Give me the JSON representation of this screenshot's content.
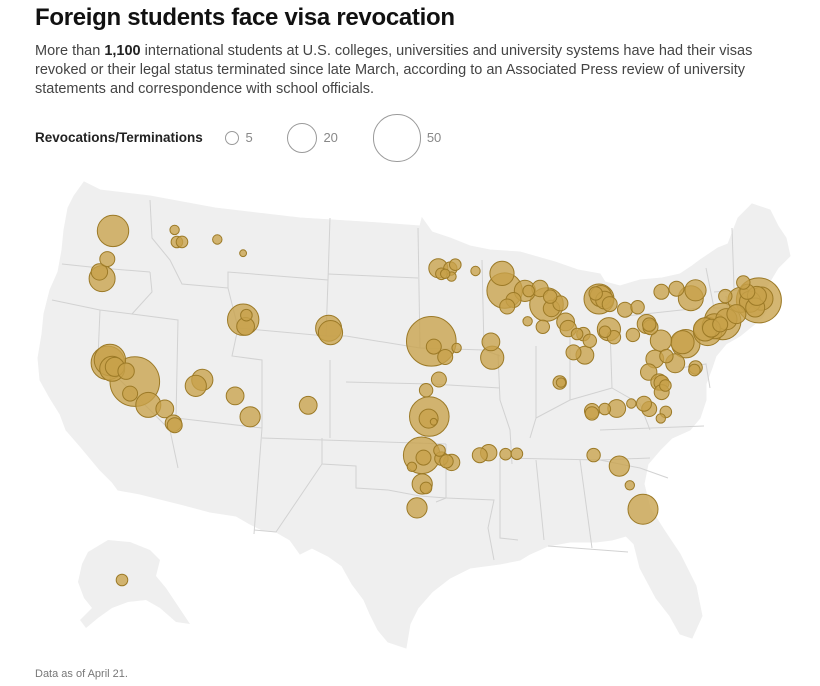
{
  "title": "Foreign students face visa revocation",
  "intro": {
    "before": "More than ",
    "highlight": "1,100",
    "after": " international students at U.S. colleges, universities and university systems have had their visas revoked or their legal status terminated since late March, according to an Associated Press review of university statements and correspondence with school officials."
  },
  "legend": {
    "title": "Revocations/Terminations",
    "items": [
      {
        "value": 5,
        "label": "5"
      },
      {
        "value": 20,
        "label": "20"
      },
      {
        "value": 50,
        "label": "50"
      }
    ]
  },
  "footnote": "Data as of April 21.",
  "colors": {
    "bubble_fill": "#c8a24a",
    "bubble_stroke": "#9c7a27",
    "land": "#efefef",
    "borders": "#d2d2d2"
  },
  "map_data": {
    "type": "proportional-symbol-map",
    "region": "United States",
    "symbol_meaning": "Revocations/Terminations per school",
    "bubbles": [
      {
        "lon": -122.3,
        "lat": 47.65,
        "value": 22
      },
      {
        "lon": -117.2,
        "lat": 46.73,
        "value": 3
      },
      {
        "lon": -117.4,
        "lat": 47.65,
        "value": 2
      },
      {
        "lon": -116.8,
        "lat": 46.73,
        "value": 3
      },
      {
        "lon": -111.93,
        "lat": 45.8,
        "value": 1
      },
      {
        "lon": -114.0,
        "lat": 46.87,
        "value": 2
      },
      {
        "lon": -122.7,
        "lat": 45.52,
        "value": 5
      },
      {
        "lon": -123.07,
        "lat": 44.05,
        "value": 15
      },
      {
        "lon": -123.3,
        "lat": 44.56,
        "value": 6
      },
      {
        "lon": -122.3,
        "lat": 37.87,
        "value": 22
      },
      {
        "lon": -122.45,
        "lat": 37.65,
        "value": 25
      },
      {
        "lon": -122.1,
        "lat": 37.2,
        "value": 14
      },
      {
        "lon": -121.9,
        "lat": 37.34,
        "value": 8
      },
      {
        "lon": -121.0,
        "lat": 37.0,
        "value": 6
      },
      {
        "lon": -120.3,
        "lat": 36.2,
        "value": 55
      },
      {
        "lon": -120.65,
        "lat": 35.3,
        "value": 5
      },
      {
        "lon": -119.2,
        "lat": 34.42,
        "value": 14
      },
      {
        "lon": -117.9,
        "lat": 34.1,
        "value": 7
      },
      {
        "lon": -117.2,
        "lat": 33.0,
        "value": 6
      },
      {
        "lon": -117.1,
        "lat": 32.85,
        "value": 5
      },
      {
        "lon": -111.85,
        "lat": 40.76,
        "value": 22
      },
      {
        "lon": -111.65,
        "lat": 40.25,
        "value": 7
      },
      {
        "lon": -111.6,
        "lat": 41.1,
        "value": 3
      },
      {
        "lon": -105.1,
        "lat": 40.02,
        "value": 15
      },
      {
        "lon": -104.95,
        "lat": 39.68,
        "value": 13
      },
      {
        "lon": -115.0,
        "lat": 36.25,
        "value": 10
      },
      {
        "lon": -115.5,
        "lat": 35.8,
        "value": 10
      },
      {
        "lon": -112.4,
        "lat": 35.0,
        "value": 7
      },
      {
        "lon": -111.2,
        "lat": 33.4,
        "value": 9
      },
      {
        "lon": -106.65,
        "lat": 34.2,
        "value": 7
      },
      {
        "lon": -96.45,
        "lat": 44.43,
        "value": 8
      },
      {
        "lon": -96.2,
        "lat": 44.0,
        "value": 3
      },
      {
        "lon": -95.5,
        "lat": 44.4,
        "value": 4
      },
      {
        "lon": -95.1,
        "lat": 44.7,
        "value": 3
      },
      {
        "lon": -95.4,
        "lat": 43.8,
        "value": 2
      },
      {
        "lon": -95.9,
        "lat": 44.0,
        "value": 2
      },
      {
        "lon": -93.5,
        "lat": 44.25,
        "value": 2
      },
      {
        "lon": -91.4,
        "lat": 44.1,
        "value": 13
      },
      {
        "lon": -91.2,
        "lat": 42.8,
        "value": 28
      },
      {
        "lon": -90.5,
        "lat": 42.1,
        "value": 5
      },
      {
        "lon": -91.0,
        "lat": 41.6,
        "value": 5
      },
      {
        "lon": -89.6,
        "lat": 42.8,
        "value": 10
      },
      {
        "lon": -89.3,
        "lat": 42.8,
        "value": 3
      },
      {
        "lon": -97.0,
        "lat": 38.9,
        "value": 55
      },
      {
        "lon": -96.8,
        "lat": 38.5,
        "value": 5
      },
      {
        "lon": -95.0,
        "lat": 38.4,
        "value": 2
      },
      {
        "lon": -92.3,
        "lat": 38.9,
        "value": 7
      },
      {
        "lon": -92.2,
        "lat": 37.7,
        "value": 12
      },
      {
        "lon": -95.9,
        "lat": 37.7,
        "value": 5
      },
      {
        "lon": -97.4,
        "lat": 35.2,
        "value": 4
      },
      {
        "lon": -96.4,
        "lat": 36.0,
        "value": 5
      },
      {
        "lon": -97.15,
        "lat": 33.21,
        "value": 35
      },
      {
        "lon": -97.2,
        "lat": 33.05,
        "value": 8
      },
      {
        "lon": -96.8,
        "lat": 32.8,
        "value": 1
      },
      {
        "lon": -96.35,
        "lat": 30.62,
        "value": 3
      },
      {
        "lon": -97.74,
        "lat": 30.28,
        "value": 30
      },
      {
        "lon": -97.6,
        "lat": 30.1,
        "value": 5
      },
      {
        "lon": -96.2,
        "lat": 30.0,
        "value": 4
      },
      {
        "lon": -95.8,
        "lat": 29.8,
        "value": 4
      },
      {
        "lon": -95.4,
        "lat": 29.72,
        "value": 6
      },
      {
        "lon": -98.5,
        "lat": 29.42,
        "value": 2
      },
      {
        "lon": -97.7,
        "lat": 28.1,
        "value": 9
      },
      {
        "lon": -97.4,
        "lat": 27.8,
        "value": 3
      },
      {
        "lon": -98.1,
        "lat": 26.3,
        "value": 9
      },
      {
        "lon": -93.2,
        "lat": 30.3,
        "value": 5
      },
      {
        "lon": -92.5,
        "lat": 30.5,
        "value": 6
      },
      {
        "lon": -91.18,
        "lat": 30.41,
        "value": 3
      },
      {
        "lon": -90.3,
        "lat": 30.45,
        "value": 3
      },
      {
        "lon": -87.9,
        "lat": 41.8,
        "value": 25
      },
      {
        "lon": -87.5,
        "lat": 41.5,
        "value": 6
      },
      {
        "lon": -88.4,
        "lat": 43.0,
        "value": 6
      },
      {
        "lon": -87.6,
        "lat": 42.4,
        "value": 4
      },
      {
        "lon": -86.8,
        "lat": 41.9,
        "value": 5
      },
      {
        "lon": -86.4,
        "lat": 40.5,
        "value": 7
      },
      {
        "lon": -86.2,
        "lat": 40.0,
        "value": 6
      },
      {
        "lon": -85.5,
        "lat": 39.6,
        "value": 3
      },
      {
        "lon": -85.0,
        "lat": 39.6,
        "value": 4
      },
      {
        "lon": -84.0,
        "lat": 42.7,
        "value": 4
      },
      {
        "lon": -83.74,
        "lat": 42.28,
        "value": 20
      },
      {
        "lon": -83.6,
        "lat": 42.5,
        "value": 10
      },
      {
        "lon": -83.3,
        "lat": 42.2,
        "value": 7
      },
      {
        "lon": -82.9,
        "lat": 41.9,
        "value": 5
      },
      {
        "lon": -81.7,
        "lat": 41.5,
        "value": 5
      },
      {
        "lon": -82.99,
        "lat": 40.0,
        "value": 12
      },
      {
        "lon": -83.3,
        "lat": 39.8,
        "value": 3
      },
      {
        "lon": -84.5,
        "lat": 39.1,
        "value": 4
      },
      {
        "lon": -82.6,
        "lat": 39.4,
        "value": 4
      },
      {
        "lon": -80.0,
        "lat": 40.44,
        "value": 8
      },
      {
        "lon": -79.8,
        "lat": 40.4,
        "value": 4
      },
      {
        "lon": -79.7,
        "lat": 40.2,
        "value": 5
      },
      {
        "lon": -80.7,
        "lat": 41.7,
        "value": 4
      },
      {
        "lon": -81.1,
        "lat": 39.6,
        "value": 4
      },
      {
        "lon": -79.4,
        "lat": 37.8,
        "value": 7
      },
      {
        "lon": -78.9,
        "lat": 39.2,
        "value": 10
      },
      {
        "lon": -76.94,
        "lat": 38.99,
        "value": 18
      },
      {
        "lon": -77.2,
        "lat": 39.1,
        "value": 12
      },
      {
        "lon": -78.48,
        "lat": 38.03,
        "value": 4
      },
      {
        "lon": -77.8,
        "lat": 37.5,
        "value": 8
      },
      {
        "lon": -76.3,
        "lat": 37.0,
        "value": 3
      },
      {
        "lon": -76.2,
        "lat": 37.2,
        "value": 4
      },
      {
        "lon": -79.9,
        "lat": 36.8,
        "value": 6
      },
      {
        "lon": -79.1,
        "lat": 36.05,
        "value": 6
      },
      {
        "lon": -78.9,
        "lat": 36.0,
        "value": 5
      },
      {
        "lon": -78.6,
        "lat": 35.8,
        "value": 3
      },
      {
        "lon": -78.9,
        "lat": 35.3,
        "value": 5
      },
      {
        "lon": -78.6,
        "lat": 33.8,
        "value": 3
      },
      {
        "lon": -79.9,
        "lat": 34.0,
        "value": 5
      },
      {
        "lon": -80.3,
        "lat": 34.4,
        "value": 5
      },
      {
        "lon": -81.3,
        "lat": 34.4,
        "value": 2
      },
      {
        "lon": -79.0,
        "lat": 33.3,
        "value": 2
      },
      {
        "lon": -82.45,
        "lat": 34.0,
        "value": 7
      },
      {
        "lon": -84.39,
        "lat": 33.78,
        "value": 5
      },
      {
        "lon": -84.4,
        "lat": 33.6,
        "value": 4
      },
      {
        "lon": -83.38,
        "lat": 33.95,
        "value": 3
      },
      {
        "lon": -86.9,
        "lat": 35.9,
        "value": 4
      },
      {
        "lon": -84.9,
        "lat": 38.0,
        "value": 7
      },
      {
        "lon": -85.8,
        "lat": 38.2,
        "value": 5
      },
      {
        "lon": -88.2,
        "lat": 40.1,
        "value": 4
      },
      {
        "lon": -89.4,
        "lat": 40.5,
        "value": 2
      },
      {
        "lon": -86.8,
        "lat": 35.9,
        "value": 2
      },
      {
        "lon": -84.3,
        "lat": 30.44,
        "value": 4
      },
      {
        "lon": -82.3,
        "lat": 29.64,
        "value": 9
      },
      {
        "lon": -81.5,
        "lat": 28.2,
        "value": 2
      },
      {
        "lon": -80.5,
        "lat": 26.4,
        "value": 20
      },
      {
        "lon": -75.2,
        "lat": 39.95,
        "value": 18
      },
      {
        "lon": -75.4,
        "lat": 40.1,
        "value": 12
      },
      {
        "lon": -74.9,
        "lat": 40.2,
        "value": 7
      },
      {
        "lon": -74.65,
        "lat": 40.35,
        "value": 14
      },
      {
        "lon": -74.0,
        "lat": 40.73,
        "value": 30
      },
      {
        "lon": -74.2,
        "lat": 40.5,
        "value": 5
      },
      {
        "lon": -73.7,
        "lat": 40.9,
        "value": 10
      },
      {
        "lon": -76.48,
        "lat": 42.45,
        "value": 14
      },
      {
        "lon": -76.1,
        "lat": 43.05,
        "value": 10
      },
      {
        "lon": -77.6,
        "lat": 43.15,
        "value": 5
      },
      {
        "lon": -78.8,
        "lat": 42.9,
        "value": 5
      },
      {
        "lon": -73.75,
        "lat": 42.65,
        "value": 4
      },
      {
        "lon": -72.9,
        "lat": 41.3,
        "value": 8
      },
      {
        "lon": -72.55,
        "lat": 42.38,
        "value": 14
      },
      {
        "lon": -71.8,
        "lat": 42.25,
        "value": 10
      },
      {
        "lon": -71.4,
        "lat": 41.82,
        "value": 8
      },
      {
        "lon": -71.1,
        "lat": 42.36,
        "value": 45
      },
      {
        "lon": -70.9,
        "lat": 42.5,
        "value": 12
      },
      {
        "lon": -71.25,
        "lat": 42.7,
        "value": 8
      },
      {
        "lon": -72.3,
        "lat": 43.7,
        "value": 4
      },
      {
        "lon": -72.0,
        "lat": 43.0,
        "value": 5
      },
      {
        "lon": -149.9,
        "lat": 61.2,
        "value": 3
      }
    ]
  }
}
